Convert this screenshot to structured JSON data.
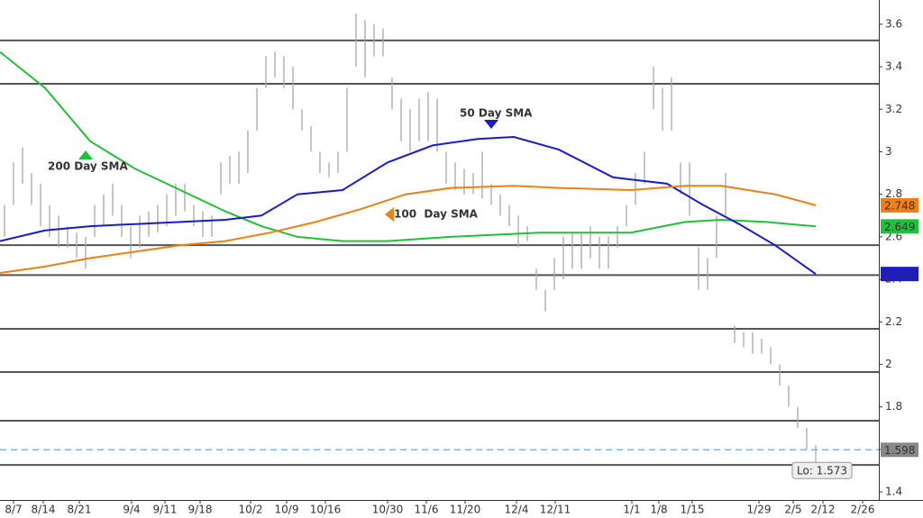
{
  "chart_data": {
    "type": "ohlc",
    "xlim": [
      0,
      97.5
    ],
    "ylim": [
      1.362,
      3.714
    ],
    "yticks": [
      1.4,
      1.6,
      1.8,
      2,
      2.2,
      2.4,
      2.6,
      2.8,
      3,
      3.2,
      3.4,
      3.6
    ],
    "xticks": [
      {
        "value": 1.5,
        "label": "8/7"
      },
      {
        "value": 4.8,
        "label": "8/14"
      },
      {
        "value": 8.8,
        "label": "8/21"
      },
      {
        "value": 14.6,
        "label": "9/4"
      },
      {
        "value": 18.3,
        "label": "9/11"
      },
      {
        "value": 22.2,
        "label": "9/18"
      },
      {
        "value": 27.8,
        "label": "10/2"
      },
      {
        "value": 31.8,
        "label": "10/9"
      },
      {
        "value": 36.1,
        "label": "10/16"
      },
      {
        "value": 43,
        "label": "10/30"
      },
      {
        "value": 47.3,
        "label": "11/6"
      },
      {
        "value": 51.6,
        "label": "11/20"
      },
      {
        "value": 57.3,
        "label": "12/4"
      },
      {
        "value": 61.6,
        "label": "12/11"
      },
      {
        "value": 70.1,
        "label": "1/1"
      },
      {
        "value": 73.1,
        "label": "1/8"
      },
      {
        "value": 76.8,
        "label": "1/15"
      },
      {
        "value": 84.2,
        "label": "1/29"
      },
      {
        "value": 88,
        "label": "2/5"
      },
      {
        "value": 91.3,
        "label": "2/12"
      },
      {
        "value": 95.7,
        "label": "2/26"
      }
    ],
    "bars": {
      "color": "#a8a8a8",
      "x": [
        0.5,
        1.5,
        2.5,
        3.5,
        4.5,
        5.5,
        6.5,
        7.5,
        8.5,
        9.5,
        10.5,
        11.5,
        12.5,
        13.5,
        14.5,
        15.5,
        16.5,
        17.5,
        18.5,
        19.5,
        20.5,
        21.5,
        22.5,
        23.5,
        24.5,
        25.5,
        26.5,
        27.5,
        28.5,
        29.5,
        30.5,
        31.5,
        32.5,
        33.5,
        34.5,
        35.5,
        36.5,
        37.5,
        38.5,
        39.5,
        40.5,
        41.5,
        42.5,
        43.5,
        44.5,
        45.5,
        46.5,
        47.5,
        48.5,
        49.5,
        50.5,
        51.5,
        52.5,
        53.5,
        54.5,
        55.5,
        56.5,
        57.5,
        58.5,
        59.5,
        60.5,
        61.5,
        62.5,
        63.5,
        64.5,
        65.5,
        66.5,
        67.5,
        68.5,
        69.5,
        70.5,
        71.5,
        72.5,
        73.5,
        74.5,
        75.5,
        76.5,
        77.5,
        78.5,
        79.5,
        80.5,
        81.5,
        82.5,
        83.5,
        84.5,
        85.5,
        86.5,
        87.5,
        88.5,
        89.5,
        90.5
      ],
      "high": [
        2.75,
        2.95,
        3.02,
        2.9,
        2.85,
        2.75,
        2.7,
        2.65,
        2.62,
        2.6,
        2.75,
        2.8,
        2.85,
        2.75,
        2.65,
        2.7,
        2.72,
        2.75,
        2.8,
        2.85,
        2.85,
        2.75,
        2.72,
        2.7,
        2.95,
        2.98,
        3.0,
        3.1,
        3.3,
        3.45,
        3.47,
        3.45,
        3.4,
        3.2,
        3.12,
        3.0,
        2.95,
        3.0,
        3.3,
        3.65,
        3.62,
        3.6,
        3.58,
        3.35,
        3.25,
        3.2,
        3.25,
        3.28,
        3.25,
        3.0,
        2.95,
        2.92,
        2.9,
        3.0,
        2.85,
        2.8,
        2.75,
        2.7,
        2.65,
        2.45,
        2.35,
        2.5,
        2.6,
        2.62,
        2.62,
        2.65,
        2.6,
        2.6,
        2.65,
        2.75,
        2.9,
        3.0,
        3.4,
        3.3,
        3.35,
        2.95,
        2.95,
        2.55,
        2.5,
        2.7,
        2.9,
        2.18,
        2.15,
        2.15,
        2.12,
        2.08,
        2.0,
        1.9,
        1.8,
        1.7,
        1.62
      ],
      "low": [
        2.6,
        2.75,
        2.85,
        2.75,
        2.65,
        2.6,
        2.55,
        2.55,
        2.5,
        2.45,
        2.6,
        2.65,
        2.7,
        2.6,
        2.5,
        2.55,
        2.6,
        2.62,
        2.65,
        2.7,
        2.72,
        2.65,
        2.6,
        2.6,
        2.8,
        2.85,
        2.85,
        2.9,
        3.1,
        3.3,
        3.35,
        3.3,
        3.2,
        3.1,
        3.0,
        2.9,
        2.88,
        2.9,
        3.0,
        3.4,
        3.35,
        3.45,
        3.45,
        3.2,
        3.05,
        3.0,
        3.05,
        3.05,
        3.0,
        2.85,
        2.82,
        2.8,
        2.8,
        2.78,
        2.75,
        2.7,
        2.65,
        2.55,
        2.58,
        2.35,
        2.25,
        2.35,
        2.4,
        2.45,
        2.45,
        2.5,
        2.45,
        2.45,
        2.55,
        2.65,
        2.75,
        2.85,
        3.2,
        3.1,
        3.1,
        2.8,
        2.7,
        2.35,
        2.35,
        2.5,
        2.7,
        2.1,
        2.08,
        2.05,
        2.05,
        2.0,
        1.9,
        1.8,
        1.7,
        1.6,
        1.573
      ]
    },
    "series": [
      {
        "name": "200 Day SMA",
        "color": "#22c03a",
        "text_color": "#000",
        "x": [
          0,
          5,
          10,
          15,
          20,
          25,
          29,
          33,
          38,
          43,
          50,
          60,
          70,
          76,
          80,
          85,
          90.5
        ],
        "values": [
          3.47,
          3.3,
          3.05,
          2.92,
          2.82,
          2.72,
          2.65,
          2.6,
          2.58,
          2.58,
          2.6,
          2.62,
          2.62,
          2.67,
          2.68,
          2.67,
          2.649
        ]
      },
      {
        "name": "50 Day SMA",
        "color": "#1a1ad0",
        "text_color": "#fff",
        "x": [
          0,
          5,
          10,
          15,
          20,
          25,
          29,
          33,
          38,
          43,
          48,
          53,
          57,
          62,
          68,
          70,
          74,
          78,
          82,
          86,
          90.5
        ],
        "values": [
          2.58,
          2.63,
          2.65,
          2.66,
          2.67,
          2.68,
          2.7,
          2.8,
          2.82,
          2.95,
          3.03,
          3.06,
          3.07,
          3.01,
          2.88,
          2.87,
          2.85,
          2.75,
          2.66,
          2.56,
          2.425
        ]
      },
      {
        "name": "100  Day SMA",
        "color": "#f07f16",
        "text_color": "#000",
        "x": [
          0,
          5,
          10,
          15,
          20,
          25,
          30,
          35,
          40,
          45,
          50,
          57,
          62,
          70,
          76,
          80,
          86,
          90.5
        ],
        "values": [
          2.43,
          2.46,
          2.5,
          2.53,
          2.56,
          2.58,
          2.62,
          2.67,
          2.73,
          2.8,
          2.83,
          2.84,
          2.83,
          2.82,
          2.84,
          2.84,
          2.8,
          2.748
        ]
      }
    ],
    "levels": [
      3.524,
      3.32,
      2.561,
      2.42,
      2.167,
      1.964,
      1.735,
      1.527
    ],
    "last_price": 1.598,
    "low_label": {
      "value": 1.573,
      "label": "Lo: 1.573"
    }
  }
}
